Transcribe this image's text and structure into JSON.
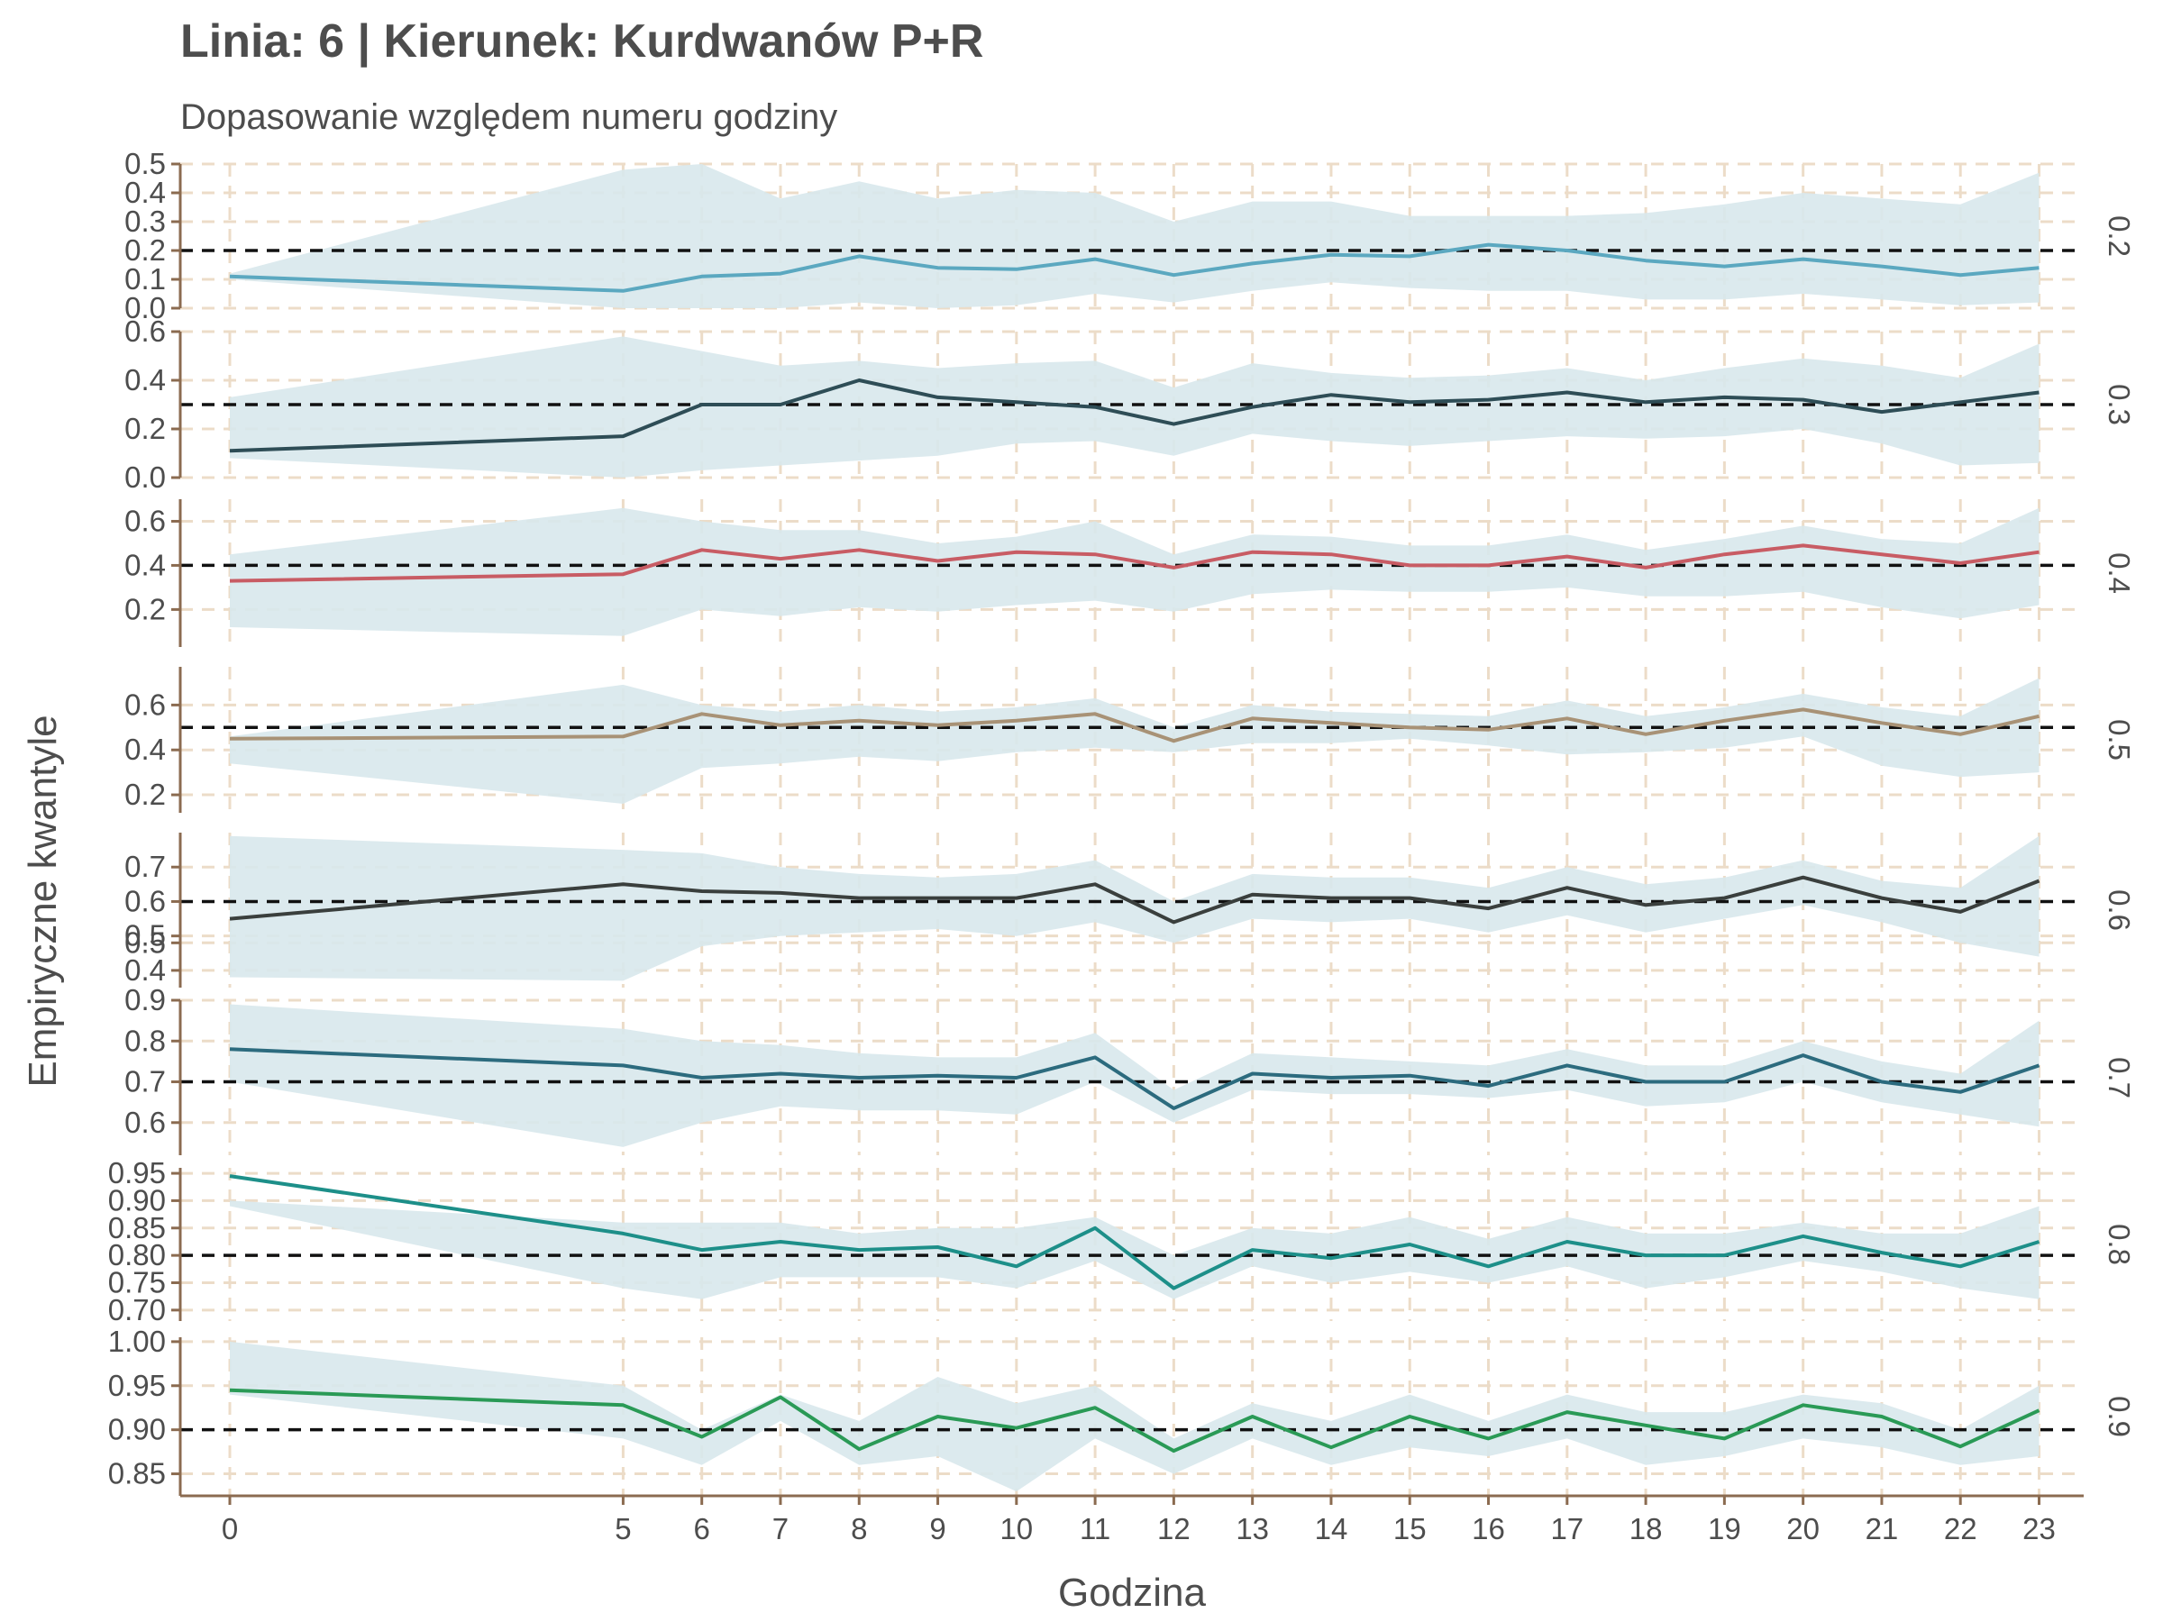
{
  "chart_data": {
    "type": "line",
    "title": "Linia: 6 | Kierunek: Kurdwanów P+R",
    "subtitle": "Dopasowanie względem numeru godziny",
    "xlabel": "Godzina",
    "ylabel": "Empiryczne kwantyle",
    "x": [
      0,
      5,
      6,
      7,
      8,
      9,
      10,
      11,
      12,
      13,
      14,
      15,
      16,
      17,
      18,
      19,
      20,
      21,
      22,
      23
    ],
    "xlim": [
      -0.6,
      23.6
    ],
    "grid": true,
    "band_color": "#d8e8ec",
    "reference_line": "dashed black line at the quantile level of each panel",
    "panels": [
      {
        "label": "0.2",
        "reference": 0.2,
        "color": "#5ba8c0",
        "ylim": [
          0.0,
          0.5
        ],
        "yticks": [
          "0.0",
          "0.1",
          "0.2",
          "0.3",
          "0.4",
          "0.5"
        ],
        "ytick_values": [
          0.0,
          0.1,
          0.2,
          0.3,
          0.4,
          0.5
        ],
        "values": [
          0.11,
          0.06,
          0.11,
          0.12,
          0.18,
          0.14,
          0.135,
          0.17,
          0.115,
          0.155,
          0.185,
          0.18,
          0.22,
          0.2,
          0.165,
          0.145,
          0.17,
          0.145,
          0.115,
          0.14
        ],
        "lower": [
          0.1,
          0.0,
          0.0,
          0.0,
          0.02,
          0.0,
          0.01,
          0.05,
          0.02,
          0.06,
          0.09,
          0.07,
          0.06,
          0.06,
          0.03,
          0.03,
          0.05,
          0.03,
          0.01,
          0.02
        ],
        "upper": [
          0.12,
          0.48,
          0.5,
          0.38,
          0.44,
          0.38,
          0.41,
          0.4,
          0.3,
          0.37,
          0.37,
          0.32,
          0.32,
          0.32,
          0.33,
          0.36,
          0.4,
          0.38,
          0.36,
          0.47
        ]
      },
      {
        "label": "0.3",
        "reference": 0.3,
        "color": "#2e4d56",
        "ylim": [
          0.0,
          0.6
        ],
        "yticks": [
          "0.0",
          "0.2",
          "0.4",
          "0.6"
        ],
        "ytick_values": [
          0.0,
          0.2,
          0.4,
          0.6
        ],
        "values": [
          0.11,
          0.17,
          0.3,
          0.3,
          0.4,
          0.33,
          0.31,
          0.29,
          0.22,
          0.29,
          0.34,
          0.31,
          0.32,
          0.35,
          0.31,
          0.33,
          0.32,
          0.27,
          0.31,
          0.35
        ],
        "lower": [
          0.08,
          0.0,
          0.03,
          0.05,
          0.07,
          0.09,
          0.14,
          0.15,
          0.09,
          0.18,
          0.15,
          0.13,
          0.15,
          0.17,
          0.16,
          0.17,
          0.2,
          0.14,
          0.05,
          0.06
        ],
        "upper": [
          0.33,
          0.58,
          0.52,
          0.46,
          0.48,
          0.45,
          0.47,
          0.48,
          0.37,
          0.47,
          0.43,
          0.41,
          0.42,
          0.45,
          0.4,
          0.45,
          0.49,
          0.46,
          0.41,
          0.55
        ]
      },
      {
        "label": "0.4",
        "reference": 0.4,
        "color": "#c85c64",
        "ylim": [
          0.03,
          0.7
        ],
        "yticks": [
          "0.2",
          "0.4",
          "0.6"
        ],
        "ytick_values": [
          0.2,
          0.4,
          0.6
        ],
        "values": [
          0.33,
          0.36,
          0.47,
          0.43,
          0.47,
          0.42,
          0.46,
          0.45,
          0.39,
          0.46,
          0.45,
          0.4,
          0.4,
          0.44,
          0.39,
          0.45,
          0.49,
          0.45,
          0.41,
          0.46
        ],
        "lower": [
          0.12,
          0.08,
          0.2,
          0.17,
          0.21,
          0.19,
          0.22,
          0.24,
          0.19,
          0.27,
          0.29,
          0.28,
          0.28,
          0.3,
          0.26,
          0.26,
          0.28,
          0.21,
          0.16,
          0.22
        ],
        "upper": [
          0.45,
          0.66,
          0.6,
          0.56,
          0.56,
          0.5,
          0.53,
          0.6,
          0.45,
          0.54,
          0.53,
          0.49,
          0.49,
          0.54,
          0.47,
          0.52,
          0.58,
          0.52,
          0.5,
          0.66
        ]
      },
      {
        "label": "0.5",
        "reference": 0.5,
        "color": "#a89276",
        "ylim": [
          0.12,
          0.77
        ],
        "yticks": [
          "0.2",
          "0.4",
          "0.6"
        ],
        "ytick_values": [
          0.2,
          0.4,
          0.6
        ],
        "values": [
          0.45,
          0.46,
          0.56,
          0.51,
          0.53,
          0.51,
          0.53,
          0.56,
          0.44,
          0.54,
          0.52,
          0.5,
          0.49,
          0.54,
          0.47,
          0.53,
          0.58,
          0.52,
          0.47,
          0.55
        ],
        "lower": [
          0.34,
          0.16,
          0.32,
          0.34,
          0.37,
          0.35,
          0.39,
          0.41,
          0.39,
          0.43,
          0.43,
          0.45,
          0.42,
          0.38,
          0.39,
          0.41,
          0.46,
          0.33,
          0.28,
          0.3
        ],
        "upper": [
          0.46,
          0.69,
          0.6,
          0.57,
          0.6,
          0.57,
          0.59,
          0.63,
          0.5,
          0.6,
          0.57,
          0.56,
          0.55,
          0.62,
          0.55,
          0.59,
          0.65,
          0.59,
          0.55,
          0.72
        ]
      },
      {
        "label": "0.6",
        "reference": 0.6,
        "color": "#3a3f3d",
        "ylim": [
          0.35,
          0.8
        ],
        "yticks": [
          "0.4",
          "0.5",
          "0.5",
          "0.6",
          "0.7"
        ],
        "ytick_values": [
          0.4,
          0.48,
          0.5,
          0.6,
          0.7
        ],
        "values": [
          0.55,
          0.65,
          0.63,
          0.625,
          0.61,
          0.61,
          0.61,
          0.65,
          0.54,
          0.62,
          0.61,
          0.61,
          0.58,
          0.64,
          0.59,
          0.61,
          0.67,
          0.61,
          0.57,
          0.66
        ],
        "lower": [
          0.38,
          0.37,
          0.47,
          0.5,
          0.51,
          0.52,
          0.5,
          0.54,
          0.48,
          0.55,
          0.54,
          0.55,
          0.51,
          0.56,
          0.51,
          0.55,
          0.59,
          0.54,
          0.48,
          0.44
        ],
        "upper": [
          0.79,
          0.75,
          0.74,
          0.7,
          0.68,
          0.67,
          0.68,
          0.72,
          0.6,
          0.68,
          0.67,
          0.67,
          0.64,
          0.7,
          0.65,
          0.67,
          0.72,
          0.66,
          0.64,
          0.79
        ]
      },
      {
        "label": "0.7",
        "reference": 0.7,
        "color": "#2c6b7e",
        "ylim": [
          0.52,
          0.9
        ],
        "yticks": [
          "0.6",
          "0.7",
          "0.8",
          "0.9"
        ],
        "ytick_values": [
          0.6,
          0.7,
          0.8,
          0.9
        ],
        "values": [
          0.78,
          0.74,
          0.71,
          0.72,
          0.71,
          0.715,
          0.71,
          0.76,
          0.635,
          0.72,
          0.71,
          0.715,
          0.69,
          0.74,
          0.7,
          0.7,
          0.765,
          0.7,
          0.675,
          0.74
        ],
        "lower": [
          0.7,
          0.54,
          0.6,
          0.64,
          0.63,
          0.63,
          0.62,
          0.7,
          0.6,
          0.68,
          0.67,
          0.67,
          0.66,
          0.68,
          0.64,
          0.65,
          0.7,
          0.65,
          0.62,
          0.59
        ],
        "upper": [
          0.89,
          0.83,
          0.8,
          0.79,
          0.77,
          0.76,
          0.76,
          0.82,
          0.68,
          0.77,
          0.76,
          0.75,
          0.74,
          0.78,
          0.74,
          0.74,
          0.8,
          0.75,
          0.72,
          0.85
        ]
      },
      {
        "label": "0.8",
        "reference": 0.8,
        "color": "#1d8f89",
        "ylim": [
          0.68,
          0.96
        ],
        "yticks": [
          "0.70",
          "0.75",
          "0.80",
          "0.85",
          "0.90",
          "0.95"
        ],
        "ytick_values": [
          0.7,
          0.75,
          0.8,
          0.85,
          0.9,
          0.95
        ],
        "values": [
          0.945,
          0.84,
          0.81,
          0.825,
          0.81,
          0.815,
          0.78,
          0.85,
          0.74,
          0.81,
          0.795,
          0.82,
          0.78,
          0.825,
          0.8,
          0.8,
          0.835,
          0.805,
          0.78,
          0.825
        ],
        "lower": [
          0.89,
          0.74,
          0.72,
          0.76,
          0.76,
          0.76,
          0.74,
          0.79,
          0.72,
          0.78,
          0.75,
          0.77,
          0.75,
          0.78,
          0.74,
          0.76,
          0.79,
          0.77,
          0.74,
          0.72
        ],
        "upper": [
          0.9,
          0.86,
          0.86,
          0.86,
          0.84,
          0.85,
          0.85,
          0.87,
          0.8,
          0.85,
          0.84,
          0.87,
          0.83,
          0.87,
          0.84,
          0.84,
          0.86,
          0.84,
          0.84,
          0.89
        ]
      },
      {
        "label": "0.9",
        "reference": 0.9,
        "color": "#2a9a56",
        "ylim": [
          0.825,
          1.005
        ],
        "yticks": [
          "0.85",
          "0.90",
          "0.95",
          "1.00"
        ],
        "ytick_values": [
          0.85,
          0.9,
          0.95,
          1.0
        ],
        "values": [
          0.945,
          0.928,
          0.892,
          0.937,
          0.878,
          0.915,
          0.902,
          0.925,
          0.876,
          0.915,
          0.88,
          0.915,
          0.89,
          0.92,
          0.905,
          0.89,
          0.928,
          0.915,
          0.881,
          0.922
        ],
        "lower": [
          0.94,
          0.89,
          0.86,
          0.91,
          0.86,
          0.87,
          0.83,
          0.89,
          0.85,
          0.89,
          0.86,
          0.88,
          0.87,
          0.89,
          0.86,
          0.87,
          0.89,
          0.88,
          0.86,
          0.87
        ],
        "upper": [
          1.0,
          0.95,
          0.9,
          0.94,
          0.91,
          0.96,
          0.93,
          0.95,
          0.89,
          0.93,
          0.91,
          0.94,
          0.91,
          0.94,
          0.92,
          0.92,
          0.94,
          0.93,
          0.9,
          0.95
        ]
      }
    ]
  }
}
